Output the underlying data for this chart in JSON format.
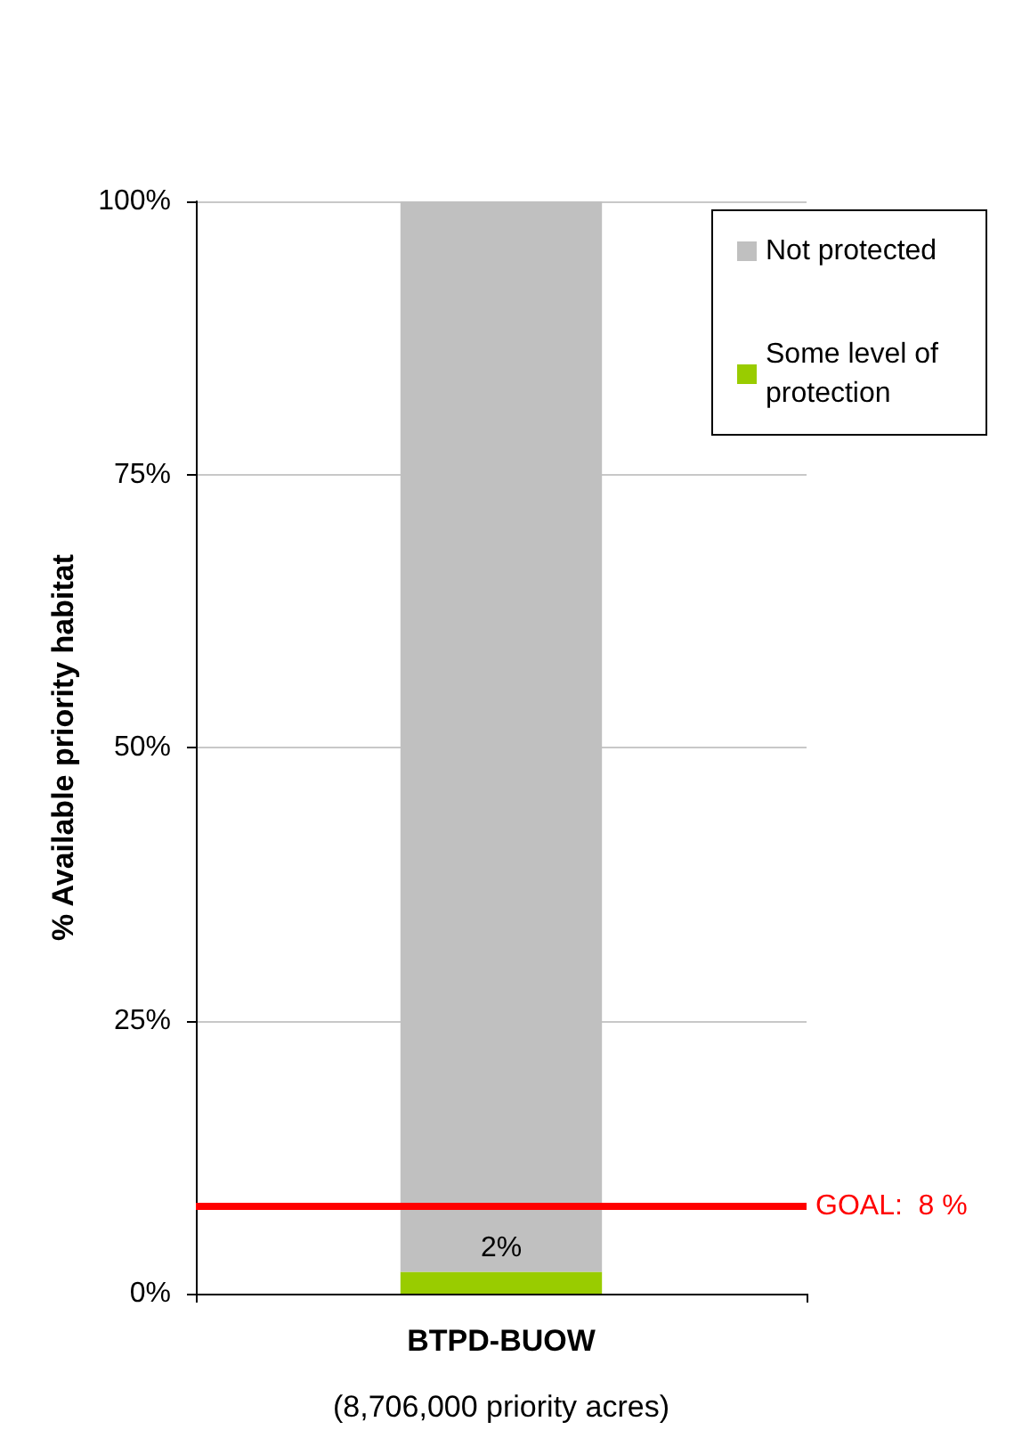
{
  "chart_data": {
    "type": "bar",
    "stacked": true,
    "categories": [
      "BTPD-BUOW"
    ],
    "xlabel": "(8,706,000 priority acres)",
    "ylabel": "% Available priority habitat",
    "series": [
      {
        "name": "Some level of protection",
        "color": "#99cc00",
        "values": [
          2
        ],
        "value_labels": [
          "2%"
        ]
      },
      {
        "name": "Not protected",
        "color": "#c0c0c0",
        "values": [
          98
        ]
      }
    ],
    "ylim": [
      0,
      100
    ],
    "yticks": [
      {
        "value": 0,
        "label": "0%"
      },
      {
        "value": 25,
        "label": "25%"
      },
      {
        "value": 50,
        "label": "50%"
      },
      {
        "value": 75,
        "label": "75%"
      },
      {
        "value": 100,
        "label": "100%"
      }
    ],
    "grid": "y",
    "legend": "top right",
    "ref_lines": [
      {
        "axis": "y",
        "value": 8,
        "label": "GOAL:  8 %",
        "color": "#ff0000"
      }
    ]
  }
}
